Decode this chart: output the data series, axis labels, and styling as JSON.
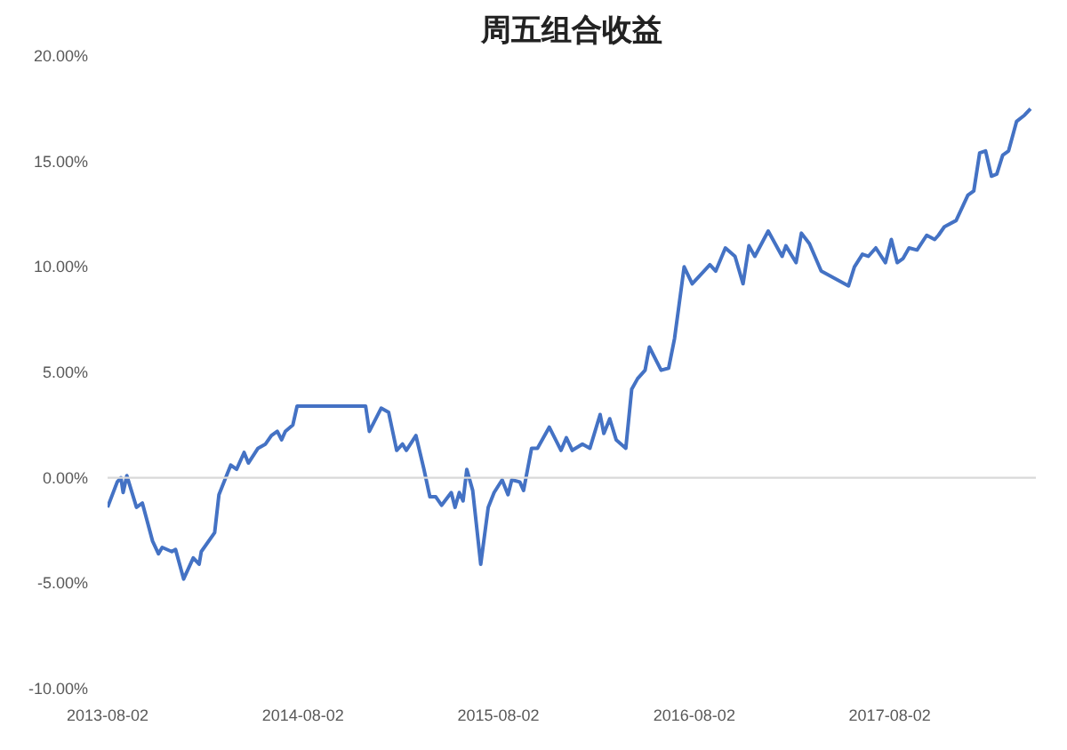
{
  "chart_data": {
    "type": "line",
    "title": "周五组合收益",
    "x": [
      "2013-08-02",
      "2013-08-20",
      "2013-08-27",
      "2013-08-31",
      "2013-09-07",
      "2013-09-25",
      "2013-10-06",
      "2013-10-25",
      "2013-11-05",
      "2013-11-12",
      "2013-11-30",
      "2013-12-07",
      "2013-12-22",
      "2014-01-09",
      "2014-01-20",
      "2014-01-24",
      "2014-02-18",
      "2014-02-26",
      "2014-03-20",
      "2014-03-31",
      "2014-04-14",
      "2014-04-22",
      "2014-05-10",
      "2014-05-24",
      "2014-06-04",
      "2014-06-15",
      "2014-06-23",
      "2014-06-30",
      "2014-07-14",
      "2014-07-22",
      "2014-11-27",
      "2014-12-04",
      "2014-12-26",
      "2015-01-09",
      "2015-01-24",
      "2015-02-04",
      "2015-02-11",
      "2015-03-01",
      "2015-03-16",
      "2015-03-27",
      "2015-04-07",
      "2015-04-18",
      "2015-05-06",
      "2015-05-13",
      "2015-05-21",
      "2015-05-28",
      "2015-06-04",
      "2015-06-15",
      "2015-06-30",
      "2015-07-14",
      "2015-07-25",
      "2015-08-09",
      "2015-08-20",
      "2015-08-27",
      "2015-09-11",
      "2015-09-18",
      "2015-10-03",
      "2015-10-14",
      "2015-11-05",
      "2015-11-27",
      "2015-12-07",
      "2015-12-18",
      "2016-01-06",
      "2016-01-20",
      "2016-02-08",
      "2016-02-15",
      "2016-02-26",
      "2016-03-09",
      "2016-03-27",
      "2016-04-07",
      "2016-04-18",
      "2016-05-02",
      "2016-05-10",
      "2016-06-01",
      "2016-06-15",
      "2016-06-26",
      "2016-07-14",
      "2016-07-29",
      "2016-08-20",
      "2016-08-31",
      "2016-09-11",
      "2016-09-29",
      "2016-10-17",
      "2016-11-01",
      "2016-11-12",
      "2016-11-23",
      "2016-12-18",
      "2017-01-13",
      "2017-01-20",
      "2017-02-08",
      "2017-02-18",
      "2017-03-05",
      "2017-03-27",
      "2017-05-17",
      "2017-05-28",
      "2017-06-12",
      "2017-06-23",
      "2017-07-07",
      "2017-07-25",
      "2017-08-05",
      "2017-08-16",
      "2017-08-27",
      "2017-09-07",
      "2017-09-22",
      "2017-10-10",
      "2017-10-25",
      "2017-11-01",
      "2017-11-12",
      "2017-12-04",
      "2017-12-26",
      "2018-01-06",
      "2018-01-17",
      "2018-01-28",
      "2018-02-08",
      "2018-02-18",
      "2018-03-01",
      "2018-03-12",
      "2018-03-27",
      "2018-04-11",
      "2018-04-22"
    ],
    "series": [
      {
        "color": "#4472c4",
        "values": [
          -1.4,
          -0.2,
          0,
          -0.7,
          0.1,
          -1.4,
          -1.2,
          -3.0,
          -3.6,
          -3.3,
          -3.5,
          -3.4,
          -4.8,
          -3.8,
          -4.1,
          -3.5,
          -2.6,
          -0.8,
          0.6,
          0.4,
          1.2,
          0.7,
          1.4,
          1.6,
          2.0,
          2.2,
          1.8,
          2.2,
          2.5,
          3.4,
          3.4,
          2.2,
          3.3,
          3.1,
          1.3,
          1.6,
          1.3,
          2.0,
          0.4,
          -0.9,
          -0.9,
          -1.3,
          -0.7,
          -1.4,
          -0.7,
          -1.1,
          0.4,
          -0.6,
          -4.1,
          -1.4,
          -0.7,
          -0.1,
          -0.8,
          -0.1,
          -0.2,
          -0.6,
          1.4,
          1.4,
          2.4,
          1.3,
          1.9,
          1.3,
          1.6,
          1.4,
          3.0,
          2.1,
          2.8,
          1.8,
          1.4,
          4.2,
          4.7,
          5.1,
          6.2,
          5.1,
          5.2,
          6.6,
          10.0,
          9.2,
          9.8,
          10.1,
          9.8,
          10.9,
          10.5,
          9.2,
          11.0,
          10.5,
          11.7,
          10.5,
          11.0,
          10.2,
          11.6,
          11.1,
          9.8,
          9.1,
          10.0,
          10.6,
          10.5,
          10.9,
          10.2,
          11.3,
          10.2,
          10.4,
          10.9,
          10.8,
          11.5,
          11.3,
          11.5,
          11.9,
          12.2,
          13.4,
          13.6,
          15.4,
          15.5,
          14.3,
          14.4,
          15.3,
          15.5,
          16.9,
          17.2,
          17.5
        ]
      }
    ],
    "xlim": [
      "2013-08-02",
      "2018-05-02"
    ],
    "xticks": [
      "2013-08-02",
      "2014-08-02",
      "2015-08-02",
      "2016-08-02",
      "2017-08-02"
    ],
    "ylim": [
      -10,
      20
    ],
    "yticks": [
      {
        "value": -10,
        "label": "-10.00%"
      },
      {
        "value": -5,
        "label": "-5.00%"
      },
      {
        "value": 0,
        "label": "0.00%"
      },
      {
        "value": 5,
        "label": "5.00%"
      },
      {
        "value": 10,
        "label": "10.00%"
      },
      {
        "value": 15,
        "label": "15.00%"
      },
      {
        "value": 20,
        "label": "20.00%"
      }
    ],
    "ref_lines": [
      {
        "axis": "y",
        "value": 0,
        "color": "#d9d9d9"
      }
    ],
    "grid": false
  }
}
